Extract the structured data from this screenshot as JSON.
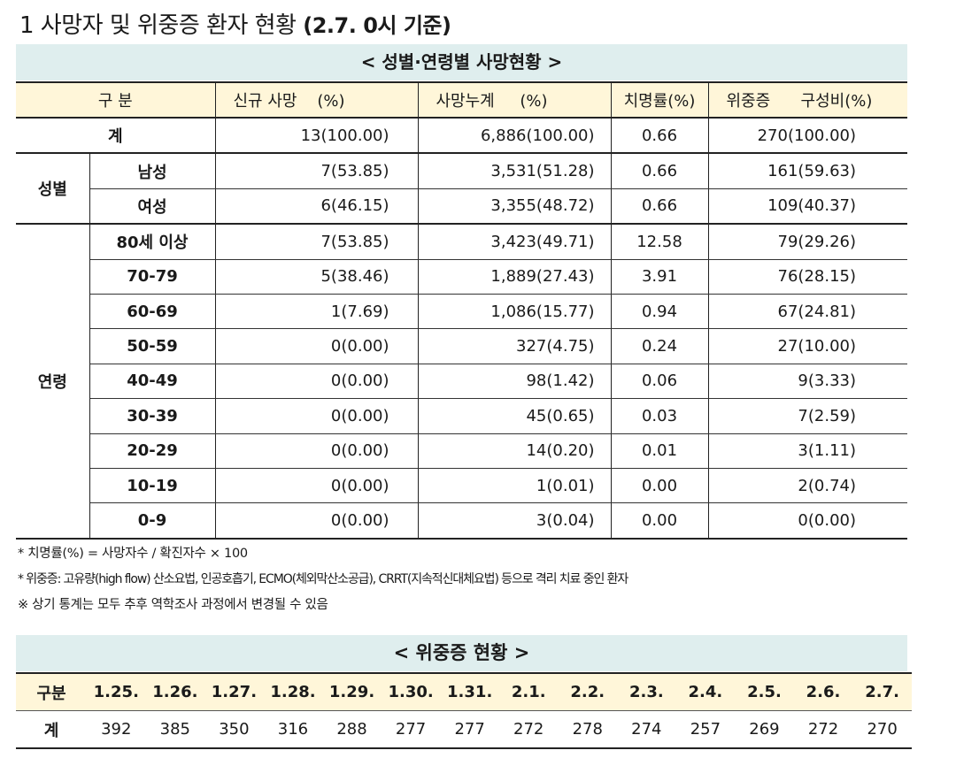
{
  "title": {
    "main": "1 사망자 및 위중증 환자 현황",
    "suffix": "(2.7. 0시 기준)"
  },
  "death_section": {
    "band": "< 성별·연령별 사망현황 >",
    "headers": {
      "category": "구 분",
      "new_death": "신규 사망",
      "new_death_pct": "(%)",
      "cum_death": "사망누계",
      "cum_death_pct": "(%)",
      "fatality": "치명률(%)",
      "severe": "위중증",
      "severe_ratio": "구성비(%)"
    },
    "total": {
      "label": "계",
      "new": "13(100.00)",
      "cum": "6,886(100.00)",
      "fatality": "0.66",
      "severe": "270(100.00)"
    },
    "sex_group_label": "성별",
    "sex_rows": [
      {
        "label": "남성",
        "new": "7(53.85)",
        "cum": "3,531(51.28)",
        "fatality": "0.66",
        "severe": "161(59.63)"
      },
      {
        "label": "여성",
        "new": "6(46.15)",
        "cum": "3,355(48.72)",
        "fatality": "0.66",
        "severe": "109(40.37)"
      }
    ],
    "age_group_label": "연령",
    "age_rows": [
      {
        "label": "80세 이상",
        "new": "7(53.85)",
        "cum": "3,423(49.71)",
        "fatality": "12.58",
        "severe": "79(29.26)"
      },
      {
        "label": "70-79",
        "new": "5(38.46)",
        "cum": "1,889(27.43)",
        "fatality": "3.91",
        "severe": "76(28.15)"
      },
      {
        "label": "60-69",
        "new": "1(7.69)",
        "cum": "1,086(15.77)",
        "fatality": "0.94",
        "severe": "67(24.81)"
      },
      {
        "label": "50-59",
        "new": "0(0.00)",
        "cum": "327(4.75)",
        "fatality": "0.24",
        "severe": "27(10.00)"
      },
      {
        "label": "40-49",
        "new": "0(0.00)",
        "cum": "98(1.42)",
        "fatality": "0.06",
        "severe": "9(3.33)"
      },
      {
        "label": "30-39",
        "new": "0(0.00)",
        "cum": "45(0.65)",
        "fatality": "0.03",
        "severe": "7(2.59)"
      },
      {
        "label": "20-29",
        "new": "0(0.00)",
        "cum": "14(0.20)",
        "fatality": "0.01",
        "severe": "3(1.11)"
      },
      {
        "label": "10-19",
        "new": "0(0.00)",
        "cum": "1(0.01)",
        "fatality": "0.00",
        "severe": "2(0.74)"
      },
      {
        "label": "0-9",
        "new": "0(0.00)",
        "cum": "3(0.04)",
        "fatality": "0.00",
        "severe": "0(0.00)"
      }
    ]
  },
  "notes": [
    "* 치명률(%) = 사망자수 / 확진자수 × 100",
    "* 위중증: 고유량(high flow) 산소요법, 인공호흡기, ECMO(체외막산소공급), CRRT(지속적신대체요법) 등으로 격리 치료 중인 환자",
    "※ 상기 통계는 모두 추후 역학조사 과정에서 변경될 수 있음"
  ],
  "severe_section": {
    "band": "< 위중증 현황 >",
    "row_head_label": "구분",
    "row_value_label": "계",
    "dates": [
      "1.25.",
      "1.26.",
      "1.27.",
      "1.28.",
      "1.29.",
      "1.30.",
      "1.31.",
      "2.1.",
      "2.2.",
      "2.3.",
      "2.4.",
      "2.5.",
      "2.6.",
      "2.7."
    ],
    "values": [
      "392",
      "385",
      "350",
      "316",
      "288",
      "277",
      "277",
      "272",
      "278",
      "274",
      "257",
      "269",
      "272",
      "270"
    ]
  }
}
